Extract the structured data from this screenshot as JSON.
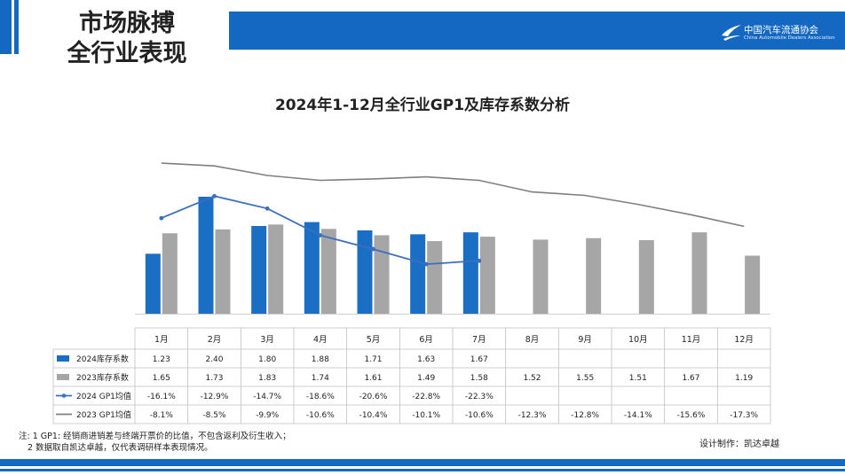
{
  "header": {
    "title_line1": "市场脉搏",
    "title_line2": "全行业表现",
    "logo_cn": "中国汽车流通协会",
    "logo_en": "China Automobile Dealers Association"
  },
  "chart_data": {
    "type": "bar",
    "title": "2024年1-12月全行业GP1及库存系数分析",
    "categories": [
      "1月",
      "2月",
      "3月",
      "4月",
      "5月",
      "6月",
      "7月",
      "8月",
      "9月",
      "10月",
      "11月",
      "12月"
    ],
    "series": [
      {
        "name": "2024库存系数",
        "kind": "bar",
        "color": "#1a6fc4",
        "values": [
          1.23,
          2.4,
          1.8,
          1.88,
          1.71,
          1.63,
          1.67,
          null,
          null,
          null,
          null,
          null
        ],
        "labels": [
          "1.23",
          "2.40",
          "1.80",
          "1.88",
          "1.71",
          "1.63",
          "1.67",
          "",
          "",
          "",
          "",
          ""
        ]
      },
      {
        "name": "2023库存系数",
        "kind": "bar",
        "color": "#a6a6a6",
        "values": [
          1.65,
          1.73,
          1.83,
          1.74,
          1.61,
          1.49,
          1.58,
          1.52,
          1.55,
          1.51,
          1.67,
          1.19
        ],
        "labels": [
          "1.65",
          "1.73",
          "1.83",
          "1.74",
          "1.61",
          "1.49",
          "1.58",
          "1.52",
          "1.55",
          "1.51",
          "1.67",
          "1.19"
        ]
      },
      {
        "name": "2024 GP1均值",
        "kind": "line",
        "color": "#3a6fc0",
        "values": [
          -16.1,
          -12.9,
          -14.7,
          -18.6,
          -20.6,
          -22.8,
          -22.3,
          null,
          null,
          null,
          null,
          null
        ],
        "labels": [
          "-16.1%",
          "-12.9%",
          "-14.7%",
          "-18.6%",
          "-20.6%",
          "-22.8%",
          "-22.3%",
          "",
          "",
          "",
          "",
          ""
        ]
      },
      {
        "name": "2023 GP1均值",
        "kind": "line",
        "color": "#7f7f7f",
        "values": [
          -8.1,
          -8.5,
          -9.9,
          -10.6,
          -10.4,
          -10.1,
          -10.6,
          -12.3,
          -12.8,
          -14.1,
          -15.6,
          -17.3
        ],
        "labels": [
          "-8.1%",
          "-8.5%",
          "-9.9%",
          "-10.6%",
          "-10.4%",
          "-10.1%",
          "-10.6%",
          "-12.3%",
          "-12.8%",
          "-14.1%",
          "-15.6%",
          "-17.3%"
        ]
      }
    ],
    "bar_axis_range": [
      0,
      2.4
    ],
    "line_axis_range": [
      -30,
      -5
    ],
    "legend": "data table below chart"
  },
  "footer": {
    "note_line1": "注: 1 GP1: 经销商进销差与终端开票价的比值，不包含返利及衍生收入；",
    "note_line2": "2 数据取自凯达卓越，仅代表调研样本表现情况。",
    "credit": "设计制作：凯达卓越"
  }
}
